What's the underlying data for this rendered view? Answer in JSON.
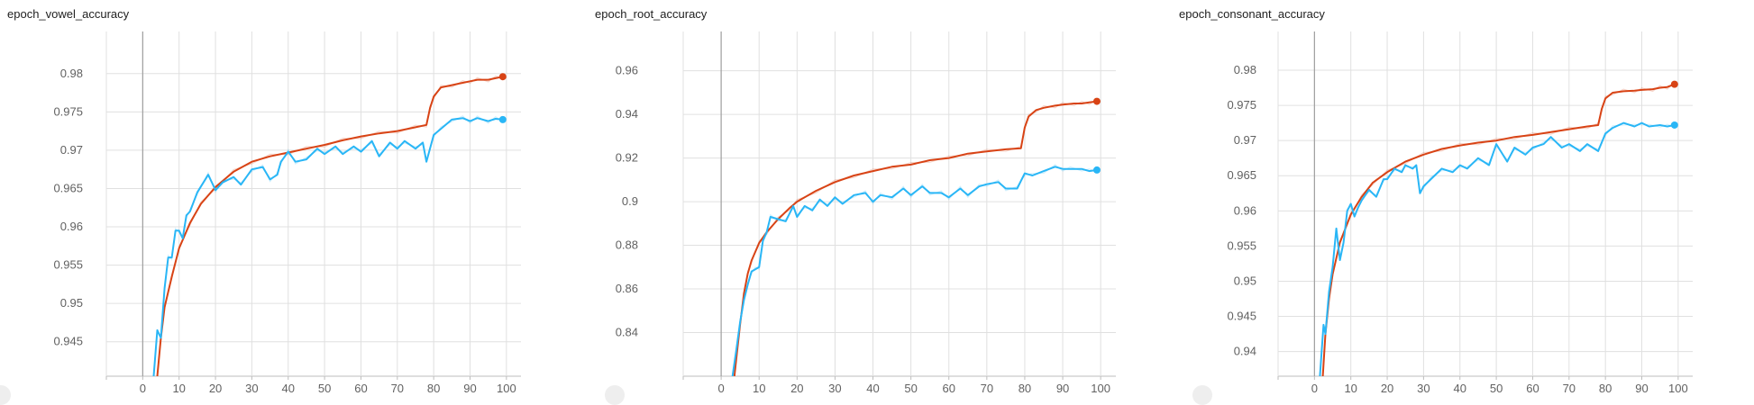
{
  "colors": {
    "train": "#d84315",
    "val": "#29b6f6"
  },
  "chart_data": [
    {
      "type": "line",
      "title": "epoch_vowel_accuracy",
      "xlabel": "",
      "ylabel": "",
      "xlim": [
        -10,
        104
      ],
      "ylim": [
        0.9405,
        0.9855
      ],
      "xticks": [
        0,
        10,
        20,
        30,
        40,
        50,
        60,
        70,
        80,
        90,
        100
      ],
      "yticks": [
        0.945,
        0.95,
        0.955,
        0.96,
        0.965,
        0.97,
        0.975,
        0.98
      ],
      "ytick_labels": [
        "0.945",
        "0.95",
        "0.955",
        "0.96",
        "0.965",
        "0.97",
        "0.975",
        "0.98"
      ],
      "grid": true,
      "series": [
        {
          "color_key": "train",
          "x": [
            4,
            5,
            6,
            8,
            10,
            13,
            16,
            20,
            25,
            30,
            35,
            40,
            45,
            50,
            55,
            60,
            65,
            70,
            75,
            78,
            79,
            80,
            82,
            85,
            88,
            90,
            92,
            95,
            97,
            99
          ],
          "y": [
            0.9405,
            0.9455,
            0.9495,
            0.9535,
            0.9572,
            0.9605,
            0.963,
            0.9652,
            0.9672,
            0.9685,
            0.9692,
            0.9697,
            0.9702,
            0.9707,
            0.9713,
            0.9718,
            0.9722,
            0.9725,
            0.973,
            0.9733,
            0.9755,
            0.977,
            0.9782,
            0.9785,
            0.9788,
            0.979,
            0.9792,
            0.9792,
            0.9794,
            0.9796
          ]
        },
        {
          "color_key": "val",
          "x": [
            3,
            4,
            5,
            6,
            7,
            8,
            9,
            10,
            11,
            12,
            13,
            15,
            18,
            20,
            22,
            25,
            27,
            30,
            33,
            35,
            37,
            38,
            40,
            42,
            45,
            48,
            50,
            53,
            55,
            58,
            60,
            63,
            65,
            68,
            70,
            72,
            75,
            77,
            78,
            80,
            82,
            85,
            88,
            90,
            92,
            95,
            97,
            99
          ],
          "y": [
            0.9405,
            0.9465,
            0.9455,
            0.952,
            0.956,
            0.956,
            0.9595,
            0.9595,
            0.9585,
            0.9615,
            0.962,
            0.9645,
            0.9668,
            0.9648,
            0.9658,
            0.9665,
            0.9655,
            0.9675,
            0.9678,
            0.9662,
            0.9668,
            0.9685,
            0.9698,
            0.9685,
            0.9688,
            0.9702,
            0.9695,
            0.9705,
            0.9695,
            0.9705,
            0.9698,
            0.9712,
            0.9692,
            0.971,
            0.9702,
            0.9712,
            0.9702,
            0.971,
            0.9685,
            0.972,
            0.9728,
            0.974,
            0.9742,
            0.9738,
            0.9742,
            0.9738,
            0.9741,
            0.974
          ]
        }
      ]
    },
    {
      "type": "line",
      "title": "epoch_root_accuracy",
      "xlabel": "",
      "ylabel": "",
      "xlim": [
        -10,
        104
      ],
      "ylim": [
        0.82,
        0.978
      ],
      "xticks": [
        0,
        10,
        20,
        30,
        40,
        50,
        60,
        70,
        80,
        90,
        100
      ],
      "yticks": [
        0.84,
        0.86,
        0.88,
        0.9,
        0.92,
        0.94,
        0.96
      ],
      "ytick_labels": [
        "0.84",
        "0.86",
        "0.88",
        "0.9",
        "0.92",
        "0.94",
        "0.96"
      ],
      "grid": true,
      "series": [
        {
          "color_key": "train",
          "x": [
            3.5,
            4,
            5,
            6,
            7,
            8,
            10,
            12,
            15,
            18,
            20,
            25,
            30,
            35,
            40,
            45,
            50,
            55,
            60,
            65,
            70,
            75,
            79,
            80,
            81,
            83,
            85,
            88,
            90,
            93,
            95,
            97,
            99
          ],
          "y": [
            0.82,
            0.828,
            0.844,
            0.858,
            0.867,
            0.873,
            0.881,
            0.886,
            0.892,
            0.897,
            0.9,
            0.905,
            0.909,
            0.912,
            0.914,
            0.916,
            0.917,
            0.919,
            0.92,
            0.922,
            0.923,
            0.924,
            0.9245,
            0.934,
            0.939,
            0.942,
            0.943,
            0.944,
            0.9445,
            0.945,
            0.945,
            0.9455,
            0.946
          ]
        },
        {
          "color_key": "val",
          "x": [
            3,
            4,
            5,
            6,
            7,
            8,
            9,
            10,
            11,
            12,
            13,
            15,
            17,
            19,
            20,
            22,
            24,
            26,
            28,
            30,
            32,
            35,
            38,
            40,
            42,
            45,
            48,
            50,
            53,
            55,
            58,
            60,
            63,
            65,
            68,
            70,
            73,
            75,
            78,
            80,
            82,
            85,
            88,
            90,
            92,
            95,
            97,
            99
          ],
          "y": [
            0.82,
            0.832,
            0.845,
            0.855,
            0.862,
            0.868,
            0.869,
            0.87,
            0.882,
            0.886,
            0.893,
            0.892,
            0.891,
            0.898,
            0.893,
            0.898,
            0.896,
            0.901,
            0.898,
            0.902,
            0.899,
            0.903,
            0.904,
            0.9,
            0.903,
            0.902,
            0.906,
            0.903,
            0.907,
            0.904,
            0.904,
            0.902,
            0.906,
            0.903,
            0.907,
            0.908,
            0.909,
            0.906,
            0.906,
            0.913,
            0.912,
            0.914,
            0.916,
            0.915,
            0.915,
            0.915,
            0.914,
            0.9145
          ]
        }
      ]
    },
    {
      "type": "line",
      "title": "epoch_consonant_accuracy",
      "xlabel": "",
      "ylabel": "",
      "xlim": [
        -10,
        104
      ],
      "ylim": [
        0.9365,
        0.9855
      ],
      "xticks": [
        0,
        10,
        20,
        30,
        40,
        50,
        60,
        70,
        80,
        90,
        100
      ],
      "yticks": [
        0.94,
        0.945,
        0.95,
        0.955,
        0.96,
        0.965,
        0.97,
        0.975,
        0.98
      ],
      "ytick_labels": [
        "0.94",
        "0.945",
        "0.95",
        "0.955",
        "0.96",
        "0.965",
        "0.97",
        "0.975",
        "0.98"
      ],
      "grid": true,
      "series": [
        {
          "color_key": "train",
          "x": [
            2.3,
            3,
            4,
            5,
            7,
            10,
            13,
            16,
            20,
            25,
            30,
            35,
            40,
            45,
            50,
            55,
            60,
            65,
            70,
            75,
            78,
            79,
            80,
            82,
            85,
            88,
            90,
            93,
            95,
            97,
            99
          ],
          "y": [
            0.9365,
            0.9425,
            0.9475,
            0.951,
            0.9555,
            0.9595,
            0.962,
            0.964,
            0.9655,
            0.967,
            0.968,
            0.9688,
            0.9693,
            0.9697,
            0.97,
            0.9705,
            0.9708,
            0.9712,
            0.9716,
            0.972,
            0.9722,
            0.9745,
            0.976,
            0.9768,
            0.977,
            0.9771,
            0.9772,
            0.9773,
            0.9775,
            0.9776,
            0.978
          ]
        },
        {
          "color_key": "val",
          "x": [
            1.5,
            2.5,
            3,
            4,
            5,
            6,
            7,
            8,
            9,
            10,
            11,
            12,
            13,
            15,
            17,
            19,
            20,
            22,
            24,
            25,
            27,
            28,
            29,
            30,
            32,
            35,
            38,
            40,
            42,
            45,
            48,
            50,
            53,
            55,
            58,
            60,
            63,
            65,
            68,
            70,
            73,
            75,
            78,
            80,
            82,
            85,
            88,
            90,
            92,
            95,
            97,
            99
          ],
          "y": [
            0.9365,
            0.9438,
            0.9425,
            0.9485,
            0.952,
            0.9575,
            0.953,
            0.9555,
            0.96,
            0.961,
            0.9592,
            0.9605,
            0.9615,
            0.963,
            0.962,
            0.9645,
            0.9645,
            0.966,
            0.9655,
            0.9665,
            0.966,
            0.9665,
            0.9625,
            0.9635,
            0.9645,
            0.966,
            0.9655,
            0.9665,
            0.966,
            0.9675,
            0.9665,
            0.9695,
            0.967,
            0.969,
            0.968,
            0.969,
            0.9695,
            0.9705,
            0.969,
            0.9695,
            0.9685,
            0.9695,
            0.9685,
            0.971,
            0.9718,
            0.9725,
            0.972,
            0.9725,
            0.972,
            0.9722,
            0.972,
            0.9722
          ]
        }
      ]
    }
  ]
}
